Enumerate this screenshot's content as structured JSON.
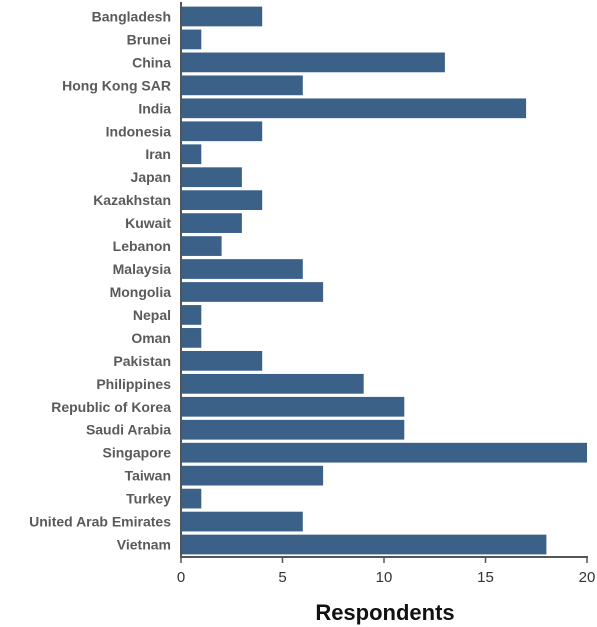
{
  "chart_data": {
    "type": "bar",
    "orientation": "horizontal",
    "categories": [
      "Bangladesh",
      "Brunei",
      "China",
      "Hong Kong SAR",
      "India",
      "Indonesia",
      "Iran",
      "Japan",
      "Kazakhstan",
      "Kuwait",
      "Lebanon",
      "Malaysia",
      "Mongolia",
      "Nepal",
      "Oman",
      "Pakistan",
      "Philippines",
      "Republic of Korea",
      "Saudi Arabia",
      "Singapore",
      "Taiwan",
      "Turkey",
      "United Arab Emirates",
      "Vietnam"
    ],
    "values": [
      4,
      1,
      13,
      6,
      17,
      4,
      1,
      3,
      4,
      3,
      2,
      6,
      7,
      1,
      1,
      4,
      9,
      11,
      11,
      20,
      7,
      1,
      6,
      18
    ],
    "title": "",
    "xlabel": "Respondents",
    "ylabel": "",
    "xlim": [
      0,
      20
    ],
    "xticks": [
      "0",
      "5",
      "10",
      "15",
      "20"
    ],
    "bar_color": "#3b6189",
    "grid": false
  }
}
